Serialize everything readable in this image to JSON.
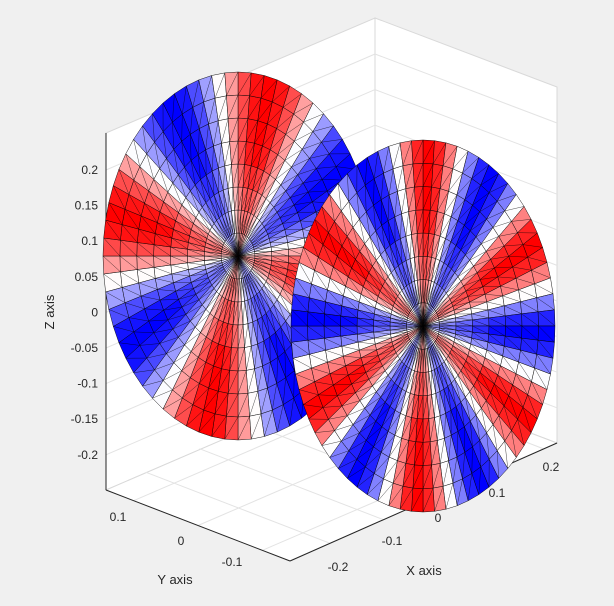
{
  "chart_data": {
    "type": "surface3d",
    "title": "",
    "xlabel": "X axis",
    "ylabel": "Y axis",
    "zlabel": "Z axis",
    "x_ticks": [
      "-0.2",
      "-0.1",
      "0",
      "0.1",
      "0.2"
    ],
    "y_ticks": [
      "0.1",
      "0",
      "-0.1"
    ],
    "z_ticks": [
      "0.2",
      "0.15",
      "0.1",
      "0.05",
      "0",
      "-0.05",
      "-0.1",
      "-0.15",
      "-0.2"
    ],
    "xlim": [
      -0.25,
      0.25
    ],
    "ylim": [
      -0.15,
      0.15
    ],
    "zlim": [
      -0.25,
      0.25
    ],
    "grid": true,
    "colormap": "blue-white-red",
    "colors": {
      "red": "#ff0000",
      "white": "#ffffff",
      "blue": "#0000ff",
      "edge": "#000000",
      "background": "#f0f0f0",
      "axes_face": "#ffffff"
    },
    "series": [
      {
        "shape": "disk",
        "radius": 0.24,
        "angular_sectors": 8
      },
      {
        "shape": "disk",
        "radius": 0.24,
        "angular_sectors": 12
      }
    ]
  }
}
